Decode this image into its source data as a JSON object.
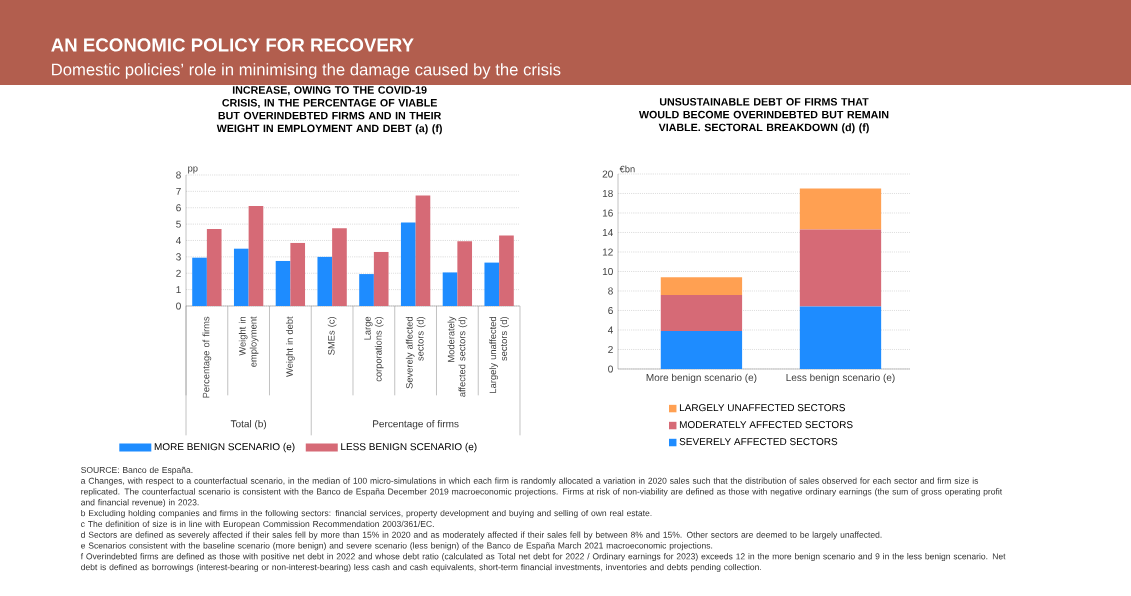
{
  "chart_data": [
    {
      "type": "other",
      "title": "AN ECONOMIC POLICY FOR RECOVERY",
      "subtitle": "Domestic policies’ role in minimising the damage caused by the crisis"
    },
    {
      "type": "bar",
      "title": "INCREASE, OWING TO THE COVID-19 CRISIS, IN THE PERCENTAGE OF VIABLE BUT OVERINDEBTED FIRMS AND IN THEIR WEIGHT IN EMPLOYMENT AND DEBT (a) (f)",
      "ylabel": "pp",
      "categories": [
        "Percentage of firms",
        "Weight in employment",
        "Weight in debt",
        "SMEs (c)",
        "Large corporations (c)",
        "Severely affected sectors (d)",
        "Moderately affected sectors (d)",
        "Largely unaffected sectors (d)"
      ],
      "series": [
        {
          "name": "MORE BENIGN SCENARIO (e)",
          "color": "#1e8cff",
          "values": [
            2.95,
            3.5,
            2.75,
            3.0,
            1.95,
            5.1,
            2.05,
            2.65
          ]
        },
        {
          "name": "LESS BENIGN SCENARIO (e)",
          "color": "#d66a76",
          "values": [
            4.7,
            6.1,
            3.85,
            4.75,
            3.3,
            6.75,
            3.95,
            4.3
          ]
        }
      ],
      "ylim": [
        0,
        8
      ],
      "yticks": [
        0,
        1,
        2,
        3,
        4,
        5,
        6,
        7,
        8
      ],
      "grid": "y",
      "legend": "bottom",
      "annotations": [
        "Total (b)",
        "Percentage of firms"
      ]
    },
    {
      "type": "bar",
      "title": "UNSUSTAINABLE DEBT OF FIRMS THAT WOULD BECOME OVERINDEBTED BUT REMAIN VIABLE. SECTORAL BREAKDOWN (d) (f)",
      "ylabel": "€bn",
      "categories": [
        "More benign scenario (e)",
        "Less benign scenario (e)"
      ],
      "stacked": true,
      "series": [
        {
          "name": "SEVERELY AFFECTED SECTORS",
          "color": "#1e8cff",
          "values": [
            3.9,
            6.4
          ]
        },
        {
          "name": "MODERATELY AFFECTED SECTORS",
          "color": "#d66a76",
          "values": [
            3.7,
            7.9
          ]
        },
        {
          "name": "LARGELY UNAFFECTED SECTORS",
          "color": "#ffa052",
          "values": [
            1.8,
            4.2
          ]
        }
      ],
      "ylim": [
        0,
        20
      ],
      "yticks": [
        0,
        2,
        4,
        6,
        8,
        10,
        12,
        14,
        16,
        18,
        20
      ],
      "grid": "y",
      "legend": "bottom"
    },
    {
      "type": "other",
      "annotations": [
        "SOURCE: Banco de España.",
        "a  Changes, with respect to a counterfactual scenario, in the median of 100 micro-simulations in which each firm is randomly allocated a variation in 2020 sales such that the distribution of sales observed for each sector and firm size is replicated. The counterfactual scenario is consistent with the Banco de España December 2019 macroeconomic projections. Firms at risk of non-viability are defined as those with negative ordinary earnings (the sum of gross operating profit and financial revenue) in 2023.",
        "b  Excluding holding companies and firms in the following sectors: financial services, property development and buying and selling of own real estate.",
        "c  The definition of size is in line with European Commission Recommendation 2003/361/EC.",
        "d  Sectors are defined as severely affected if their sales fell by more than 15% in 2020 and as moderately affected if their sales fell by between 8% and 15%. Other sectors are deemed to be largely unaffected.",
        "e  Scenarios consistent with the baseline scenario (more benign) and severe scenario (less benign) of the Banco de España March 2021 macroeconomic projections.",
        "f  Overindebted firms are defined as those with positive net debt in 2022 and whose debt ratio (calculated as Total net debt for 2022 / Ordinary earnings for 2023) exceeds 12 in the more benign scenario and 9 in the less benign scenario. Net debt is defined as borrowings (interest-bearing or non-interest-bearing) less cash and cash equivalents, short-term financial investments, inventories and debts pending collection."
      ]
    }
  ]
}
